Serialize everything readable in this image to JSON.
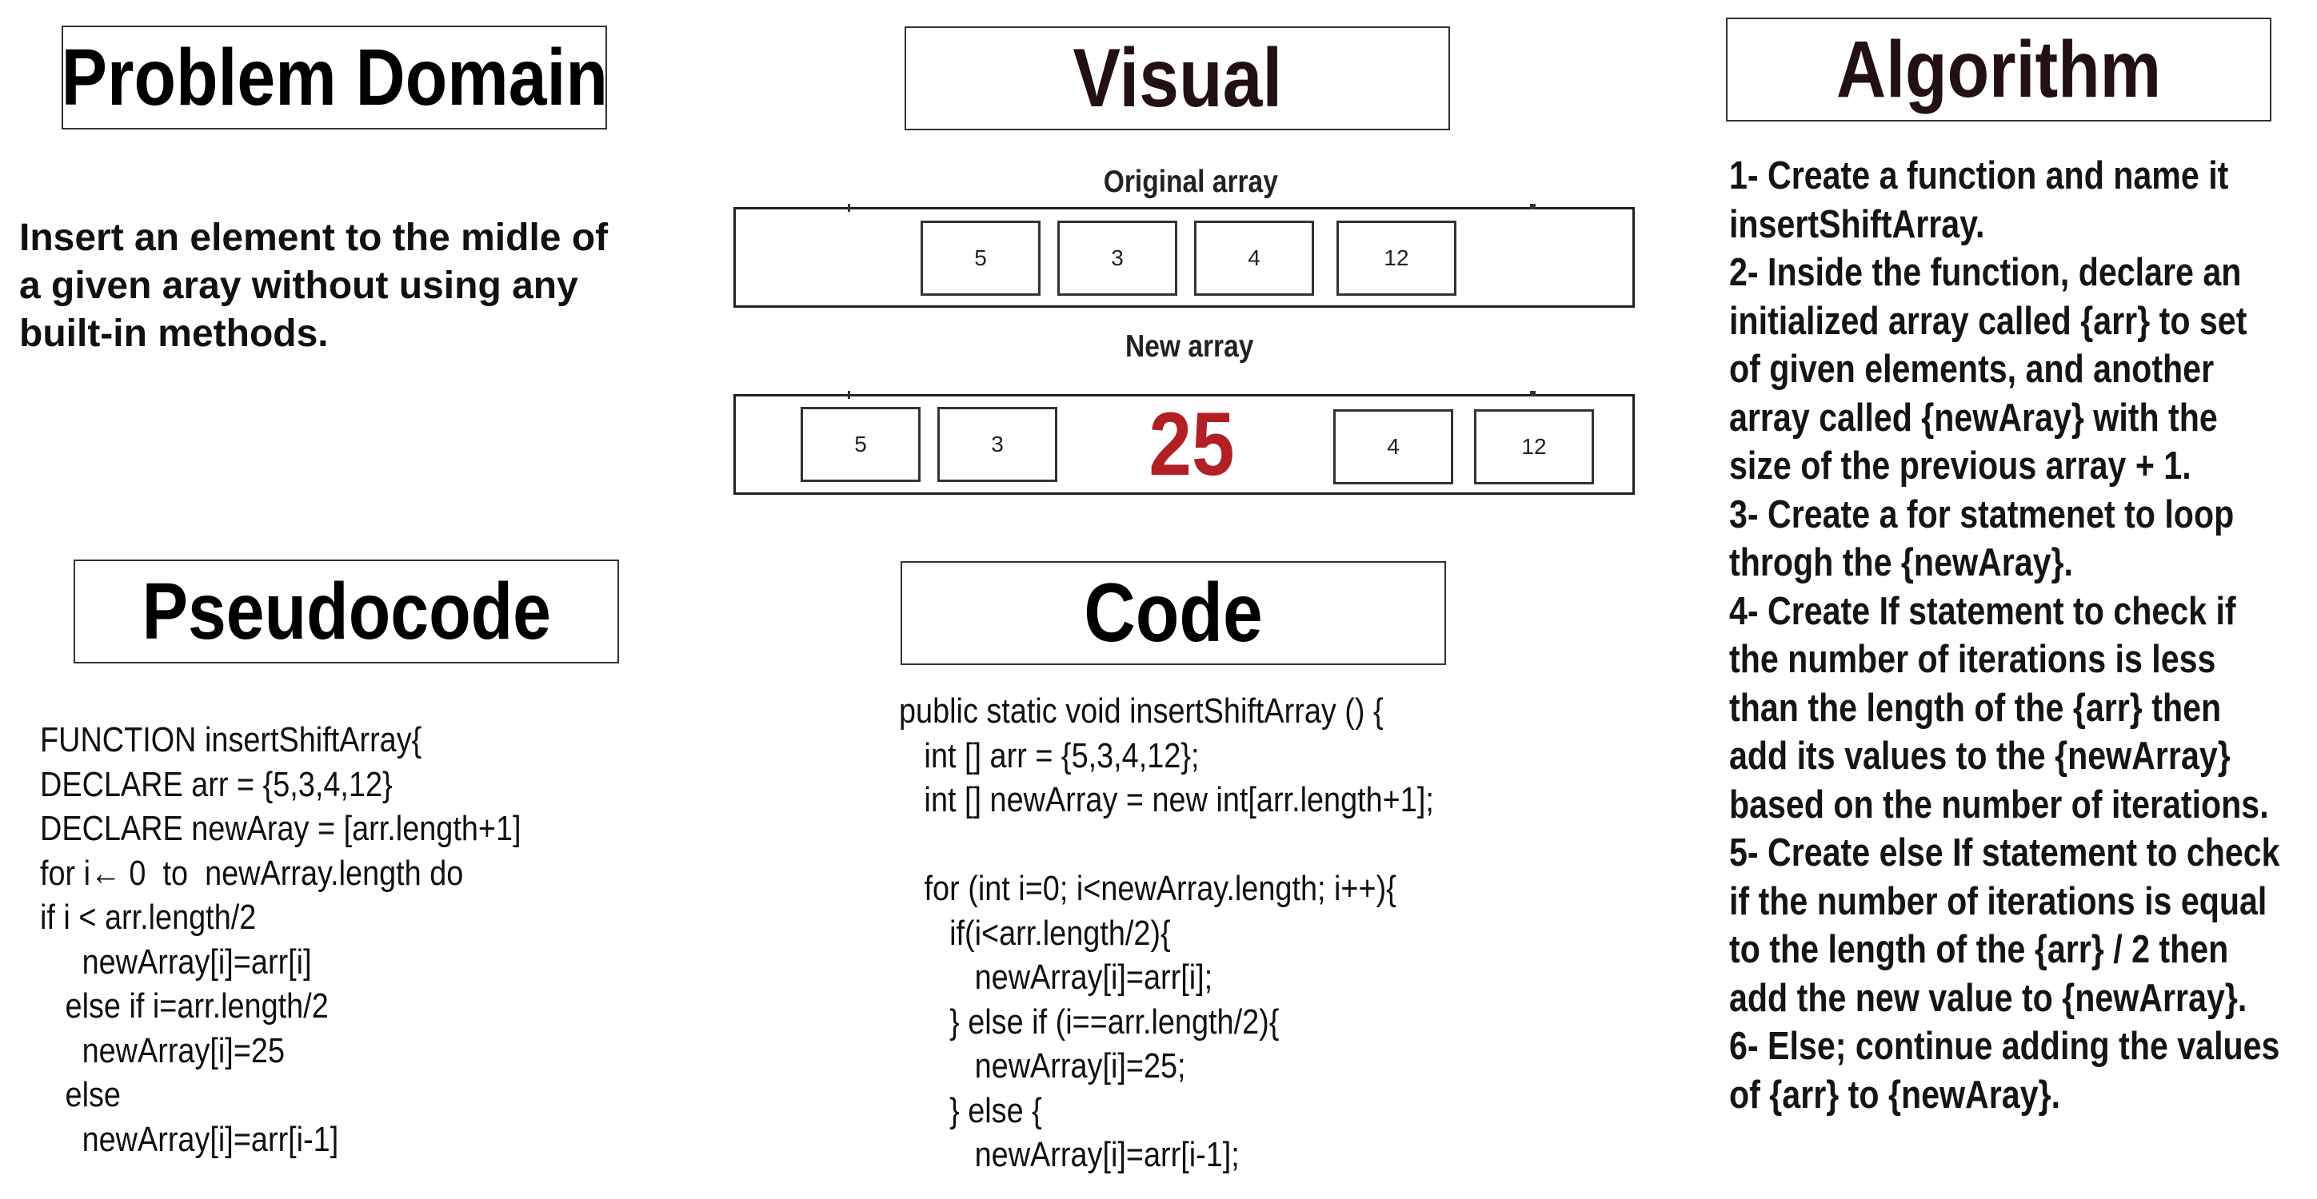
{
  "titles": {
    "problem_domain": "Problem Domain",
    "visual": "Visual",
    "algorithm": "Algorithm",
    "pseudocode": "Pseudocode",
    "code": "Code"
  },
  "problem_domain": {
    "lines": [
      "Insert an element to the midle of",
      "a given aray without using any",
      "built-in methods."
    ]
  },
  "visual": {
    "original_label": "Original array",
    "original_values": [
      "5",
      "3",
      "4",
      "12"
    ],
    "new_label": "New array",
    "new_values_left": [
      "5",
      "3"
    ],
    "inserted_value": "25",
    "new_values_right": [
      "4",
      "12"
    ],
    "inserted_color": "#b21f24"
  },
  "algorithm": {
    "lines": [
      "1- Create a function and name it",
      "insertShiftArray.",
      "2- Inside the function, declare an",
      "initialized array called {arr} to set",
      "of given elements, and another",
      "array called {newAray} with the",
      "size of the previous array + 1.",
      "3- Create a for statmenet to loop",
      "throgh the {newAray}.",
      "4- Create If statement to check if",
      "the number of iterations is less",
      "than the length of the {arr} then",
      "add its values to the {newArray}",
      "based on the number of iterations.",
      "5- Create else If statement to check",
      "if the number of iterations is equal",
      "to the length of the {arr} / 2  then",
      "add the new value to {newArray}.",
      "6- Else; continue adding the values",
      "of {arr} to {newAray}."
    ]
  },
  "pseudocode": {
    "lines": [
      "FUNCTION insertShiftArray{",
      "DECLARE arr = {5,3,4,12}",
      "DECLARE newAray = [arr.length+1]",
      "for i← 0  to  newArray.length do",
      "if i < arr.length/2",
      "     newArray[i]=arr[i]",
      "   else if i=arr.length/2",
      "     newArray[i]=25",
      "   else",
      "     newArray[i]=arr[i-1]"
    ]
  },
  "code": {
    "lines": [
      "public static void insertShiftArray () {",
      "   int [] arr = {5,3,4,12};",
      "   int [] newArray = new int[arr.length+1];",
      "",
      "   for (int i=0; i<newArray.length; i++){",
      "      if(i<arr.length/2){",
      "         newArray[i]=arr[i];",
      "      } else if (i==arr.length/2){",
      "         newArray[i]=25;",
      "      } else {",
      "         newArray[i]=arr[i-1];"
    ]
  }
}
